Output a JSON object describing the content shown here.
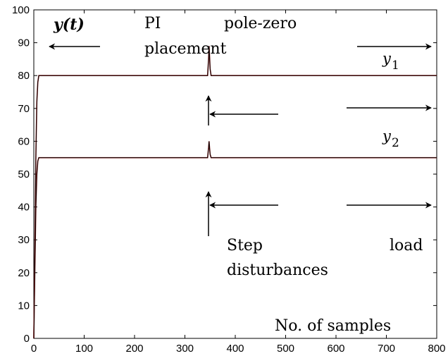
{
  "chart_data": {
    "type": "line",
    "xlim": [
      0,
      800
    ],
    "ylim": [
      0,
      100
    ],
    "xticks": [
      "0",
      "100",
      "200",
      "300",
      "400",
      "500",
      "600",
      "700",
      "800"
    ],
    "yticks": [
      "0",
      "10",
      "20",
      "30",
      "40",
      "50",
      "60",
      "70",
      "80",
      "90",
      "100"
    ],
    "grid": false,
    "series": [
      {
        "name": "y1",
        "x": [
          0,
          2,
          4,
          6,
          8,
          10,
          14,
          20,
          100,
          200,
          300,
          345,
          347,
          348,
          349,
          350,
          352,
          356,
          400,
          500,
          600,
          700,
          800
        ],
        "y": [
          0,
          25,
          55,
          72,
          78,
          80,
          80,
          80,
          80,
          80,
          80,
          80,
          85,
          89,
          86,
          82,
          80,
          80,
          80,
          80,
          80,
          80,
          80
        ]
      },
      {
        "name": "y2",
        "x": [
          0,
          2,
          4,
          6,
          8,
          10,
          14,
          20,
          100,
          200,
          300,
          345,
          347,
          348,
          349,
          350,
          352,
          356,
          400,
          500,
          600,
          700,
          800
        ],
        "y": [
          0,
          20,
          40,
          50,
          54,
          55,
          55,
          55,
          55,
          55,
          55,
          55,
          58,
          60,
          58,
          56,
          55,
          55,
          55,
          55,
          55,
          55,
          55
        ]
      }
    ],
    "annotations": {
      "y_axis_label": "y(t)",
      "method_line1": "PI",
      "method_line2": "pole-zero",
      "method_line3": "placement",
      "y1_label": "y",
      "y1_sub": "1",
      "y2_label": "y",
      "y2_sub": "2",
      "step_word": "Step",
      "load_word": "load",
      "disturbances_word": "disturbances",
      "xlabel": "No. of samples"
    }
  }
}
